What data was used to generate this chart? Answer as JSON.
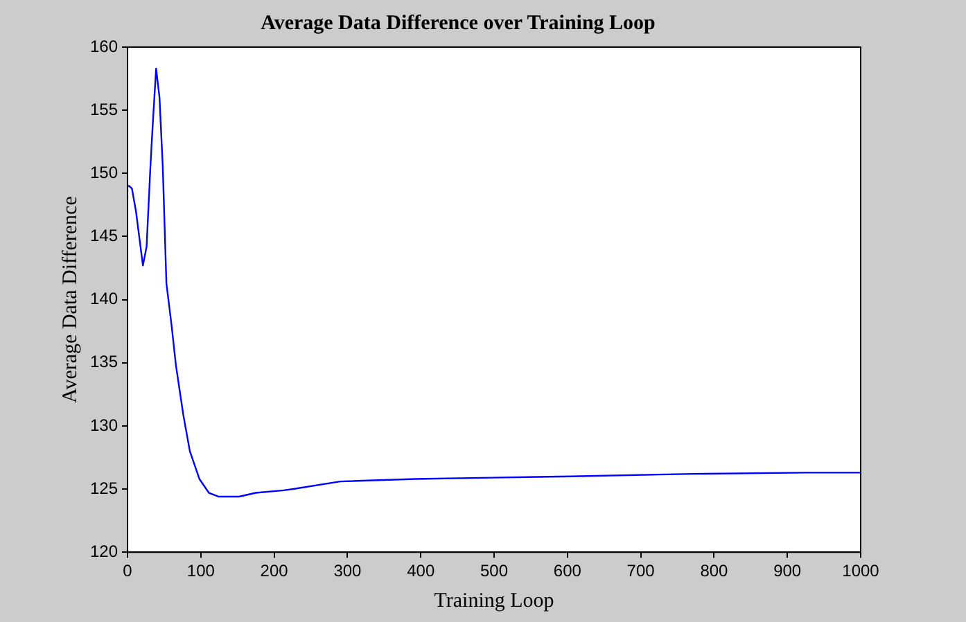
{
  "chart_data": {
    "type": "line",
    "title": "Average Data Difference over Training Loop",
    "xlabel": "Training Loop",
    "ylabel": "Average Data Difference",
    "x": [
      0,
      2,
      6,
      11.5,
      21,
      26,
      31,
      34,
      39,
      43.6,
      48,
      53,
      60,
      66,
      76,
      85,
      98,
      111,
      124,
      152,
      175,
      213,
      226,
      290,
      393,
      496,
      605,
      771,
      925,
      1000
    ],
    "series": [
      {
        "color": "#0000ff",
        "values": [
          149,
          149,
          148.8,
          147,
          142.7,
          144.2,
          150.3,
          153.5,
          158.3,
          156,
          150.6,
          141.3,
          138,
          134.8,
          130.9,
          128,
          125.8,
          124.7,
          124.4,
          124.4,
          124.7,
          124.9,
          125.0,
          125.6,
          125.8,
          125.9,
          126.0,
          126.2,
          126.3,
          126.3
        ]
      }
    ],
    "xlim": [
      0,
      1000
    ],
    "xticks": [
      0,
      100,
      200,
      300,
      400,
      500,
      600,
      700,
      800,
      900,
      1000
    ],
    "ylim": [
      120,
      160
    ],
    "yticks": [
      120,
      125,
      130,
      135,
      140,
      145,
      150,
      155,
      160
    ],
    "grid": false,
    "legend": false,
    "marker": "none",
    "line_style": "solid"
  }
}
